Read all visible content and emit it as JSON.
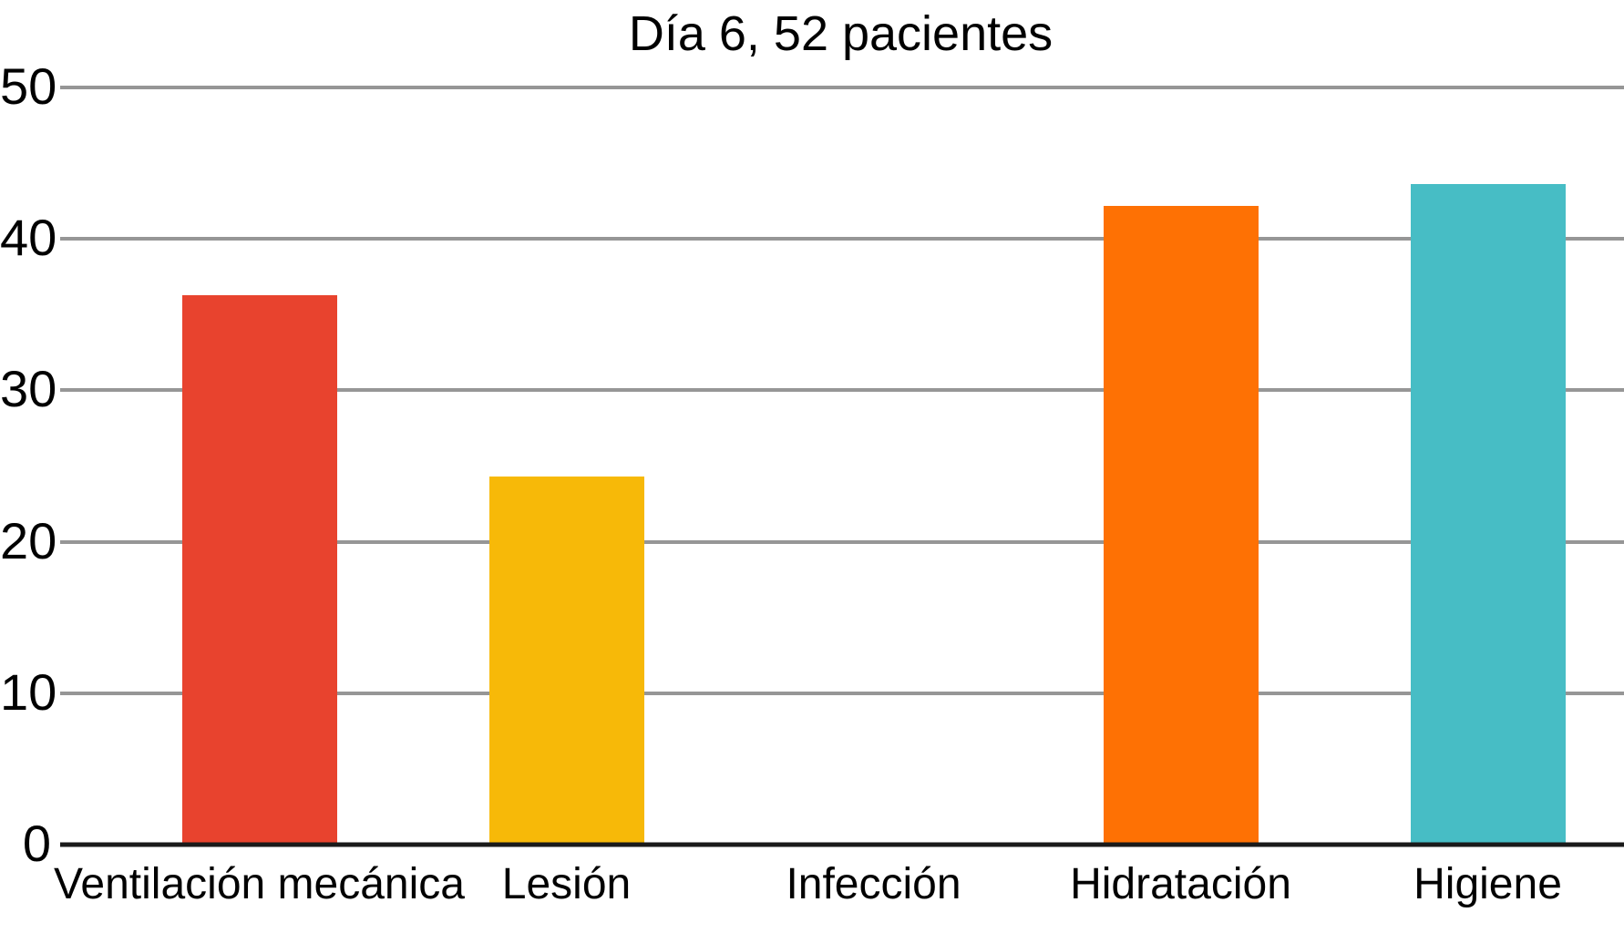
{
  "chart_data": {
    "type": "bar",
    "title": "Día 6, 52 pacientes",
    "categories": [
      "Ventilación mecánica",
      "Lesión",
      "Infección",
      "Hidratación",
      "Higiene"
    ],
    "values": [
      36.3,
      24.3,
      0,
      42.2,
      43.6
    ],
    "bar_colors": [
      "#e8432e",
      "#f7b908",
      null,
      "#fe7104",
      "#47bdc5"
    ],
    "yticks": [
      0,
      10,
      20,
      30,
      40,
      50
    ],
    "ylim": [
      0,
      50
    ],
    "grid": true,
    "legend": "none",
    "xlabel": "",
    "ylabel": ""
  },
  "colors": {
    "background": "#ffffff",
    "gridline": "#969696",
    "axis": "#1a1a1a",
    "text": "#000000"
  }
}
